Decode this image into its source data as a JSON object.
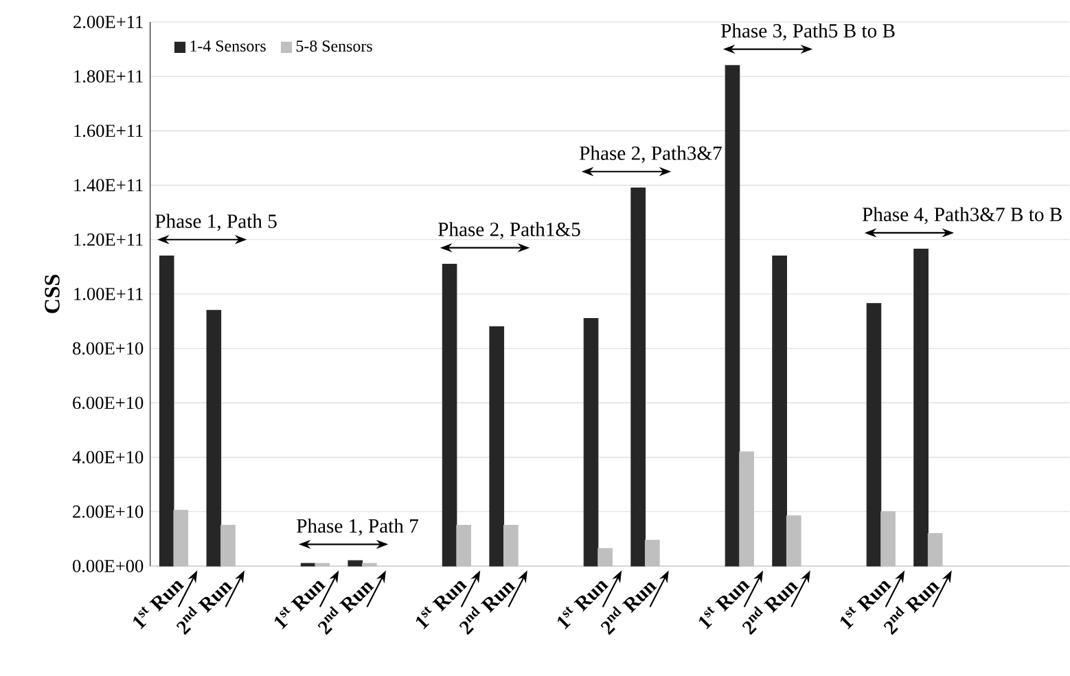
{
  "chart_data": {
    "type": "bar",
    "ylabel": "CSS",
    "categories": [
      "1$^{st}$ Run",
      "2$^{nd}$ Run",
      null,
      "1$^{st}$ Run",
      "2$^{nd}$ Run",
      null,
      "1$^{st}$ Run",
      "2$^{nd}$ Run",
      null,
      "1$^{st}$ Run",
      "2$^{nd}$ Run",
      null,
      "1$^{st}$ Run",
      "2$^{nd}$ Run",
      null,
      "1$^{st}$ Run",
      "2$^{nd}$ Run"
    ],
    "series": [
      {
        "name": "1-4 Sensors",
        "color": "#262626",
        "values": [
          114000000000,
          94000000000,
          null,
          1000000000,
          2000000000,
          null,
          111000000000,
          88000000000,
          null,
          91000000000,
          139000000000,
          null,
          184000000000,
          114000000000,
          null,
          96500000000,
          116500000000
        ]
      },
      {
        "name": "5-8 Sensors",
        "color": "#bfbfbf",
        "values": [
          20500000000,
          15000000000,
          null,
          1000000000,
          1000000000,
          null,
          15000000000,
          15000000000,
          null,
          6500000000,
          9500000000,
          null,
          42000000000,
          18500000000,
          null,
          20000000000,
          12000000000
        ]
      }
    ],
    "annotations": [
      "Phase 1, Path 5",
      "Phase 1, Path 7",
      "Phase 2, Path1&5",
      "Phase 2, Path3&7",
      "Phase 3, Path5 B to B",
      "Phase 4, Path3&7 B to B"
    ],
    "ylim": [
      0,
      200000000000
    ],
    "yticks": [
      {
        "value": 0,
        "label": "0.00E+00"
      },
      {
        "value": 20000000000,
        "label": "2.00E+10"
      },
      {
        "value": 40000000000,
        "label": "4.00E+10"
      },
      {
        "value": 60000000000,
        "label": "6.00E+10"
      },
      {
        "value": 80000000000,
        "label": "8.00E+10"
      },
      {
        "value": 100000000000,
        "label": "1.00E+11"
      },
      {
        "value": 120000000000,
        "label": "1.20E+11"
      },
      {
        "value": 140000000000,
        "label": "1.40E+11"
      },
      {
        "value": 160000000000,
        "label": "1.60E+11"
      },
      {
        "value": 180000000000,
        "label": "1.80E+11"
      },
      {
        "value": 200000000000,
        "label": "2.00E+11"
      }
    ],
    "grid": "y",
    "legend": "top left"
  }
}
